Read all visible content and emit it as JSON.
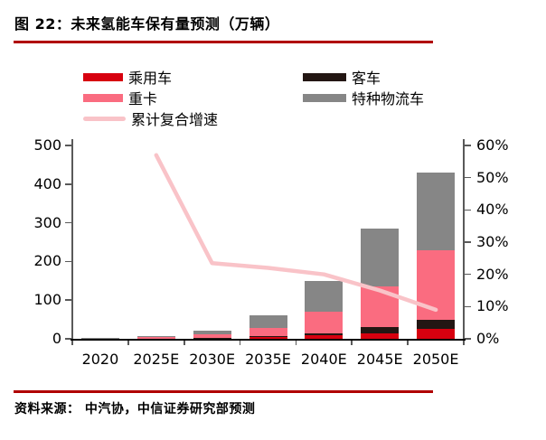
{
  "page": {
    "title": "图 22：未来氢能车保有量预测（万辆）",
    "source": "资料来源： 中汽协，中信证券研究部预测",
    "accent_color": "#B00000"
  },
  "legend": {
    "col1": [
      {
        "label": "乘用车",
        "color": "#D7000F",
        "swatch": "bar"
      },
      {
        "label": "重卡",
        "color": "#FA6C80",
        "swatch": "bar"
      },
      {
        "label": "累计复合增速",
        "color": "#F9C3C8",
        "swatch": "line"
      }
    ],
    "col2": [
      {
        "label": "客车",
        "color": "#231613",
        "swatch": "bar"
      },
      {
        "label": "特种物流车",
        "color": "#868686",
        "swatch": "bar"
      }
    ]
  },
  "chart_data": {
    "type": "bar",
    "title": "未来氢能车保有量预测（万辆）",
    "categories": [
      "2020",
      "2025E",
      "2030E",
      "2035E",
      "2040E",
      "2045E",
      "2050E"
    ],
    "series": [
      {
        "name": "乘用车",
        "color": "#D7000F",
        "values": [
          0.1,
          0.5,
          1,
          4,
          10,
          15,
          25
        ]
      },
      {
        "name": "客车",
        "color": "#231613",
        "values": [
          0.1,
          0.5,
          1,
          2,
          5,
          15,
          25
        ]
      },
      {
        "name": "重卡",
        "color": "#FA6C80",
        "values": [
          1,
          3,
          9,
          22,
          55,
          105,
          180
        ]
      },
      {
        "name": "特种物流车",
        "color": "#868686",
        "values": [
          0.3,
          4,
          11,
          32,
          80,
          150,
          200
        ]
      }
    ],
    "line_series": {
      "name": "累计复合增速",
      "color": "#F9C3C8",
      "axis": "right",
      "values": [
        null,
        57,
        23.5,
        22,
        20,
        15,
        9
      ]
    },
    "y_left": {
      "min": 0,
      "max": 500,
      "ticks": [
        "0",
        "100",
        "200",
        "300",
        "400",
        "500"
      ]
    },
    "y_right": {
      "min": 0,
      "max": 60,
      "ticks": [
        "0%",
        "10%",
        "20%",
        "30%",
        "40%",
        "50%",
        "60%"
      ]
    },
    "legend_position": "top",
    "grid": false
  }
}
